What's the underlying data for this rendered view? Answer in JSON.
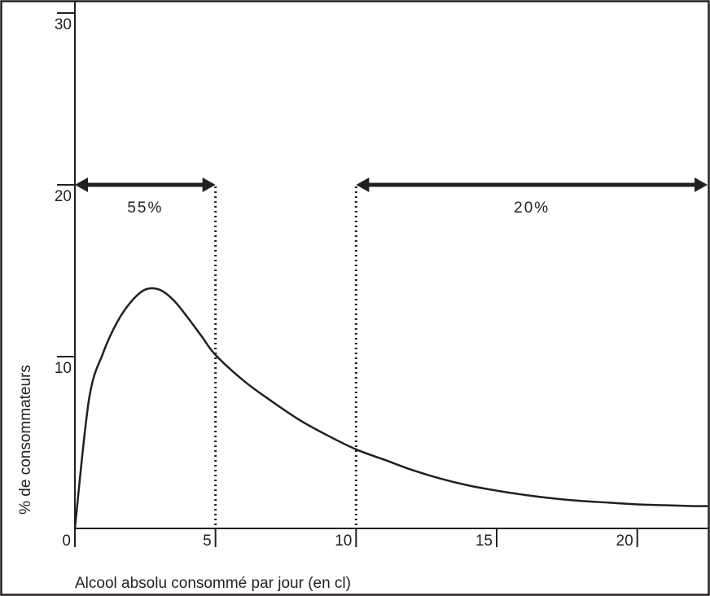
{
  "chart_data": {
    "type": "line",
    "xlabel": "Alcool absolu consommé par jour (en cl)",
    "ylabel": "% de consommateurs",
    "xlim": [
      0,
      22.5
    ],
    "ylim": [
      0,
      30
    ],
    "x_ticks": [
      "0",
      "5",
      "10",
      "15",
      "20"
    ],
    "y_ticks": [
      "10",
      "20",
      "30"
    ],
    "x_tick_values": [
      0,
      5,
      10,
      15,
      20
    ],
    "y_tick_values": [
      10,
      20,
      30
    ],
    "grid": false,
    "series": [
      {
        "x": [
          0,
          0.5,
          1,
          1.5,
          2,
          2.5,
          3,
          3.5,
          4,
          4.5,
          5,
          6,
          7,
          8,
          9,
          10,
          11,
          12,
          13,
          14,
          15,
          16,
          17,
          18,
          19,
          20,
          21,
          22,
          22.5
        ],
        "y": [
          0,
          7.5,
          10.2,
          12,
          13.2,
          13.9,
          13.9,
          13.3,
          12.3,
          11.2,
          10.1,
          8.6,
          7.4,
          6.3,
          5.4,
          4.6,
          4.0,
          3.4,
          2.9,
          2.5,
          2.2,
          1.95,
          1.75,
          1.6,
          1.5,
          1.4,
          1.35,
          1.3,
          1.3
        ]
      }
    ],
    "annotations": [
      {
        "text": "55%",
        "x_from": 0,
        "x_to": 5,
        "y": 20,
        "divider_x": 5
      },
      {
        "text": "20%",
        "x_from": 10,
        "x_to": 22.5,
        "y": 20,
        "divider_x": 10
      }
    ]
  }
}
